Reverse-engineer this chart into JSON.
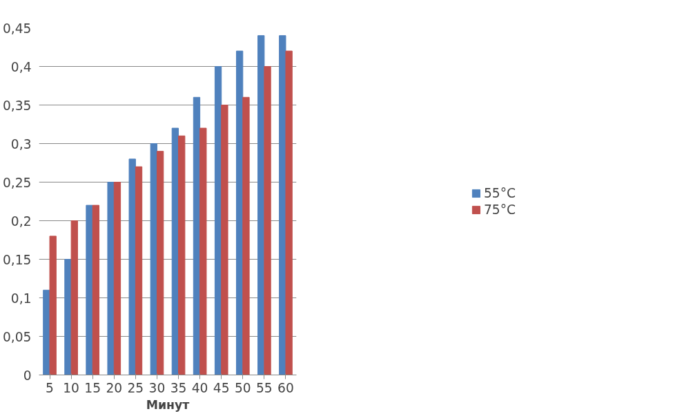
{
  "chart_data": {
    "type": "bar",
    "xlabel": "Минут",
    "categories": [
      "5",
      "10",
      "15",
      "20",
      "25",
      "30",
      "35",
      "40",
      "45",
      "50",
      "55",
      "60"
    ],
    "series": [
      {
        "name": "55°C",
        "color": "#4f81bd",
        "values": [
          0.11,
          0.15,
          0.22,
          0.25,
          0.28,
          0.3,
          0.32,
          0.36,
          0.4,
          0.42,
          0.44,
          0.44
        ]
      },
      {
        "name": "75°C",
        "color": "#c0504d",
        "values": [
          0.18,
          0.2,
          0.22,
          0.25,
          0.27,
          0.29,
          0.31,
          0.32,
          0.35,
          0.36,
          0.4,
          0.42
        ]
      }
    ],
    "ylim": [
      0,
      0.45
    ],
    "yticks": [
      0,
      {
        "value": 0.05,
        "label": "0,05"
      },
      {
        "value": 0.1,
        "label": "0,1"
      },
      {
        "value": 0.15,
        "label": "0,15"
      },
      {
        "value": 0.2,
        "label": "0,2"
      },
      {
        "value": 0.25,
        "label": "0,25"
      },
      {
        "value": 0.3,
        "label": "0,3"
      },
      {
        "value": 0.35,
        "label": "0,35"
      },
      {
        "value": 0.4,
        "label": "0,4"
      },
      {
        "value": 0.45,
        "label": "0,45"
      }
    ],
    "grid": "y",
    "legend": "right"
  }
}
